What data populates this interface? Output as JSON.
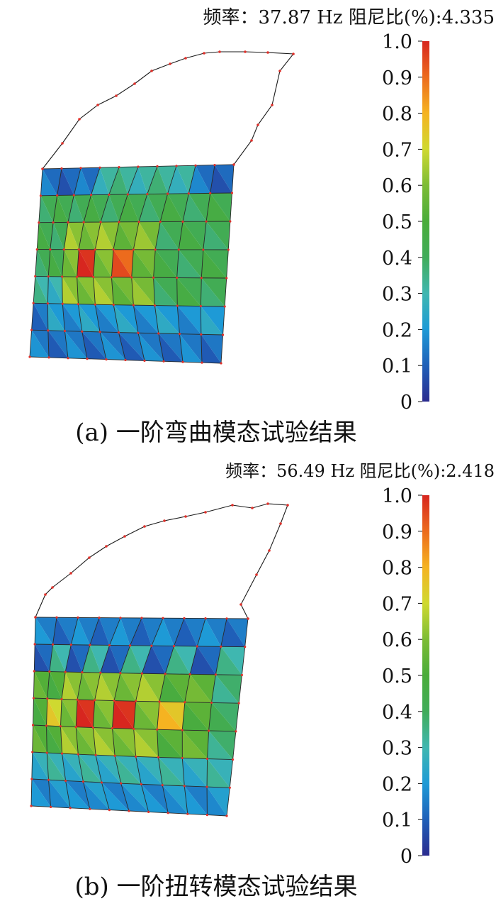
{
  "panels": [
    {
      "frequency_text": "频率：37.87 Hz",
      "damping_text": "阻尼比(%):4.335",
      "caption": "(a) 一阶弯曲模态试验结果",
      "hotspots": [
        {
          "row": 3,
          "col": 3,
          "value": 0.98
        },
        {
          "row": 3,
          "col": 5,
          "value": 0.9
        }
      ]
    },
    {
      "frequency_text": "频率：56.49 Hz",
      "damping_text": "阻尼比(%):2.418",
      "caption": "(b) 一阶扭转模态试验结果",
      "hotspots": [
        {
          "row": 3,
          "col": 3,
          "value": 0.98
        },
        {
          "row": 3,
          "col": 5,
          "value": 0.98
        },
        {
          "row": 3,
          "col": 7,
          "value": 0.75
        },
        {
          "row": 3,
          "col": 1,
          "value": 0.7
        }
      ]
    }
  ],
  "colorbar": {
    "ticks": [
      "1.0",
      "0.9",
      "0.8",
      "0.7",
      "0.6",
      "0.5",
      "0.4",
      "0.3",
      "0.2",
      "0.1",
      "0"
    ],
    "colors": [
      "#2b2c8f",
      "#1f5fb8",
      "#1e9ad6",
      "#3fb7b0",
      "#40ac5a",
      "#4aac3a",
      "#7cbc35",
      "#cfd930",
      "#f5b321",
      "#ec6b1d",
      "#d7261f"
    ]
  }
}
